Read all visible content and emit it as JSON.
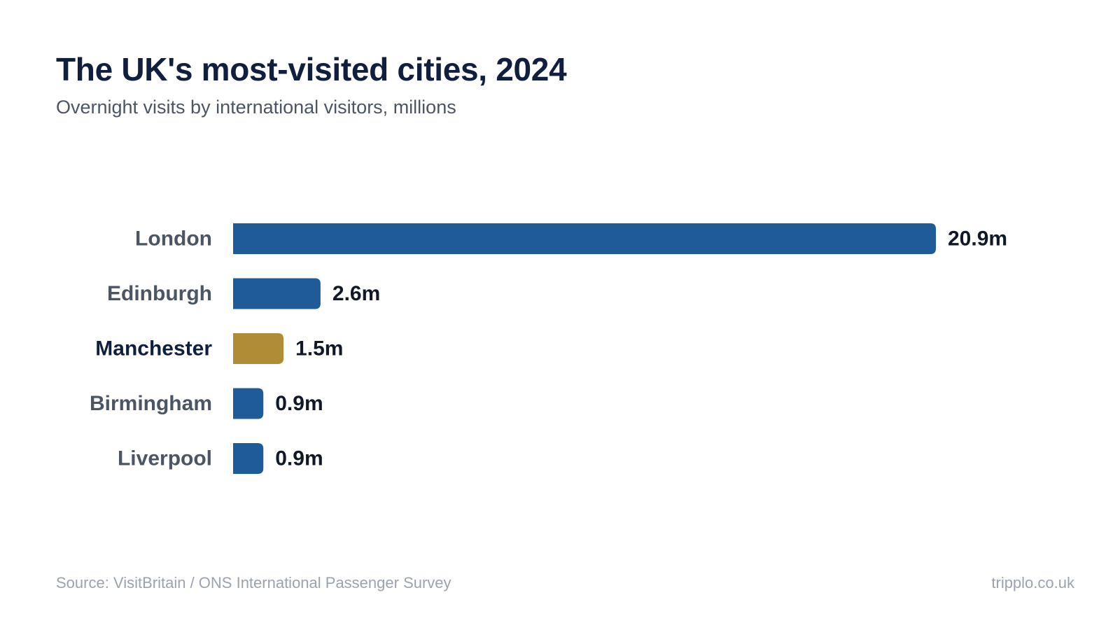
{
  "title": "The UK's most-visited cities, 2024",
  "subtitle": "Overnight visits by international visitors, millions",
  "footer": {
    "source": "Source: VisitBritain / ONS International Passenger Survey",
    "brand": "tripplo.co.uk"
  },
  "colors": {
    "bar": "#1f5b99",
    "highlight": "#b08c36",
    "category_label": "#4b5563",
    "highlight_label": "#0f1f3d",
    "value_label": "#111827"
  },
  "chart_data": {
    "type": "bar",
    "orientation": "horizontal",
    "categories": [
      "London",
      "Edinburgh",
      "Manchester",
      "Birmingham",
      "Liverpool"
    ],
    "values": [
      20.9,
      2.6,
      1.5,
      0.9,
      0.9
    ],
    "value_labels": [
      "20.9m",
      "2.6m",
      "1.5m",
      "0.9m",
      "0.9m"
    ],
    "highlight": "Manchester",
    "xlim": [
      0,
      20.9
    ],
    "grid": false,
    "legend": "none"
  }
}
